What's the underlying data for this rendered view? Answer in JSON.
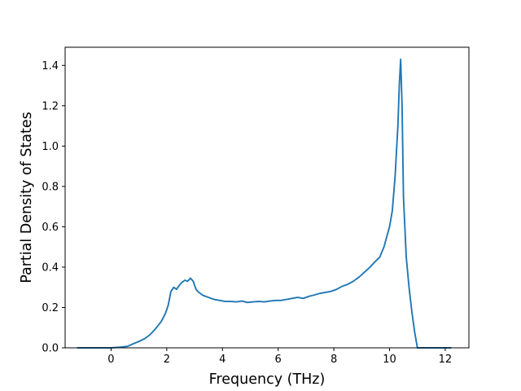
{
  "chart_data": {
    "type": "line",
    "title": "",
    "xlabel": "Frequency (THz)",
    "ylabel": "Partial Density of States",
    "xlim": [
      -1.65,
      12.85
    ],
    "ylim": [
      0.0,
      1.49
    ],
    "grid": false,
    "legend": "none",
    "line_color": "#1f77b4",
    "x_ticks": [
      0,
      2,
      4,
      6,
      8,
      10,
      12
    ],
    "x_tick_labels": [
      "0",
      "2",
      "4",
      "6",
      "8",
      "10",
      "12"
    ],
    "y_ticks": [
      0.0,
      0.2,
      0.4,
      0.6,
      0.8,
      1.0,
      1.2,
      1.4
    ],
    "y_tick_labels": [
      "0.0",
      "0.2",
      "0.4",
      "0.6",
      "0.8",
      "1.0",
      "1.2",
      "1.4"
    ],
    "series": [
      {
        "x": [
          -1.2,
          -0.6,
          0.0,
          0.3,
          0.6,
          0.8,
          1.0,
          1.2,
          1.4,
          1.6,
          1.8,
          1.95,
          2.05,
          2.15,
          2.25,
          2.35,
          2.45,
          2.55,
          2.65,
          2.75,
          2.85,
          2.95,
          3.05,
          3.15,
          3.3,
          3.5,
          3.7,
          3.9,
          4.1,
          4.3,
          4.5,
          4.7,
          4.9,
          5.1,
          5.3,
          5.5,
          5.7,
          5.9,
          6.1,
          6.3,
          6.5,
          6.7,
          6.9,
          7.1,
          7.3,
          7.5,
          7.7,
          7.9,
          8.1,
          8.3,
          8.5,
          8.7,
          8.9,
          9.1,
          9.3,
          9.5,
          9.65,
          9.8,
          9.9,
          10.0,
          10.1,
          10.2,
          10.3,
          10.35,
          10.4,
          10.45,
          10.5,
          10.6,
          10.7,
          10.8,
          10.9,
          11.0,
          11.1,
          11.3,
          11.6,
          12.2
        ],
        "y": [
          0.0,
          0.0,
          0.0,
          0.003,
          0.008,
          0.02,
          0.032,
          0.045,
          0.065,
          0.095,
          0.13,
          0.17,
          0.21,
          0.28,
          0.3,
          0.29,
          0.31,
          0.325,
          0.335,
          0.33,
          0.345,
          0.33,
          0.29,
          0.275,
          0.26,
          0.25,
          0.24,
          0.235,
          0.23,
          0.23,
          0.228,
          0.232,
          0.225,
          0.228,
          0.23,
          0.228,
          0.232,
          0.235,
          0.235,
          0.24,
          0.245,
          0.25,
          0.245,
          0.255,
          0.262,
          0.27,
          0.275,
          0.28,
          0.29,
          0.305,
          0.315,
          0.33,
          0.35,
          0.375,
          0.4,
          0.43,
          0.45,
          0.5,
          0.55,
          0.6,
          0.68,
          0.85,
          1.1,
          1.3,
          1.43,
          1.2,
          0.75,
          0.45,
          0.3,
          0.18,
          0.08,
          0.0,
          0.0,
          0.0,
          0.0,
          0.0
        ]
      }
    ]
  }
}
